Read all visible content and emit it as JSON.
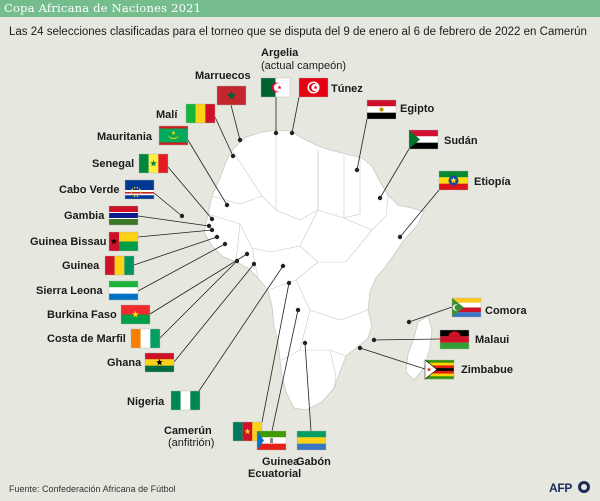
{
  "title": "Copa Africana de Naciones 2021",
  "subtitle": "Las 24 selecciones clasificadas para el torneo que se disputa del 9 de enero al 6 de febrero de 2022 en Camerún",
  "source": "Fuente: Confederación Africana de Fútbol",
  "credit": "AFP",
  "colors": {
    "title_bar": "#76bd8e",
    "background": "#e6e7df",
    "continent": "#ffffff",
    "leader": "#222222"
  },
  "countries": [
    {
      "id": "argelia",
      "name": "Argelia",
      "note": "(actual campeón)",
      "flag": "algeria"
    },
    {
      "id": "tunez",
      "name": "Túnez",
      "flag": "tunisia"
    },
    {
      "id": "marruecos",
      "name": "Marruecos",
      "flag": "morocco"
    },
    {
      "id": "egipto",
      "name": "Egipto",
      "flag": "egypt"
    },
    {
      "id": "mali",
      "name": "Malí",
      "flag": "mali"
    },
    {
      "id": "mauritania",
      "name": "Mauritania",
      "flag": "mauritania"
    },
    {
      "id": "sudan",
      "name": "Sudán",
      "flag": "sudan"
    },
    {
      "id": "senegal",
      "name": "Senegal",
      "flag": "senegal"
    },
    {
      "id": "etiopia",
      "name": "Etiopía",
      "flag": "ethiopia"
    },
    {
      "id": "cabo-verde",
      "name": "Cabo Verde",
      "flag": "cape-verde"
    },
    {
      "id": "gambia",
      "name": "Gambia",
      "flag": "gambia"
    },
    {
      "id": "guinea-bissau",
      "name": "Guinea Bissau",
      "flag": "guinea-bissau"
    },
    {
      "id": "guinea",
      "name": "Guinea",
      "flag": "guinea"
    },
    {
      "id": "sierra-leona",
      "name": "Sierra Leona",
      "flag": "sierra-leone"
    },
    {
      "id": "burkina-faso",
      "name": "Burkina Faso",
      "flag": "burkina-faso"
    },
    {
      "id": "comora",
      "name": "Comora",
      "flag": "comoros"
    },
    {
      "id": "costa-de-marfil",
      "name": "Costa de Marfil",
      "flag": "ivory-coast"
    },
    {
      "id": "malaui",
      "name": "Malaui",
      "flag": "malawi"
    },
    {
      "id": "ghana",
      "name": "Ghana",
      "flag": "ghana"
    },
    {
      "id": "zimbabue",
      "name": "Zimbabue",
      "flag": "zimbabwe"
    },
    {
      "id": "nigeria",
      "name": "Nigeria",
      "flag": "nigeria"
    },
    {
      "id": "camerun",
      "name": "Camerún",
      "note": "(anfitrión)",
      "flag": "cameroon"
    },
    {
      "id": "guinea-ecuatorial",
      "name": "Guinea",
      "name2": "Ecuatorial",
      "flag": "equatorial-guinea"
    },
    {
      "id": "gabon",
      "name": "Gabón",
      "flag": "gabon"
    }
  ]
}
